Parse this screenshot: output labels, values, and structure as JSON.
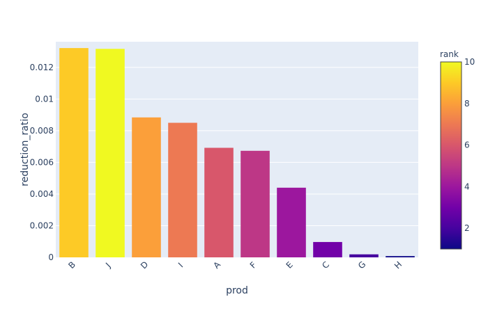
{
  "chart_data": {
    "type": "bar",
    "categories": [
      "B",
      "J",
      "D",
      "I",
      "A",
      "F",
      "E",
      "C",
      "G",
      "H"
    ],
    "values": [
      0.01322,
      0.01317,
      0.00884,
      0.0085,
      0.00692,
      0.00673,
      0.0044,
      0.00097,
      0.00019,
      8e-05
    ],
    "rank": [
      9,
      10,
      8,
      7,
      6,
      5,
      4,
      3,
      2,
      1
    ],
    "xlabel": "prod",
    "ylabel": "reduction_ratio",
    "ylim": [
      0,
      0.01362
    ],
    "yticks": [
      0,
      0.002,
      0.004,
      0.006,
      0.008,
      0.01,
      0.012
    ],
    "ytick_labels": [
      "0",
      "0.002",
      "0.004",
      "0.006",
      "0.008",
      "0.01",
      "0.012"
    ],
    "colorbar": {
      "title": "rank",
      "range": [
        1,
        10
      ],
      "ticks": [
        2,
        4,
        6,
        8,
        10
      ],
      "tick_labels": [
        "2",
        "4",
        "6",
        "8",
        "10"
      ],
      "colorscale": [
        "#0d0887",
        "#46039f",
        "#7201a8",
        "#9c179e",
        "#bd3786",
        "#d8576b",
        "#ed7953",
        "#fb9f3a",
        "#fdca26",
        "#f0f921"
      ]
    },
    "plot_background": "#e5ecf6",
    "grid": true,
    "legend": "none"
  }
}
